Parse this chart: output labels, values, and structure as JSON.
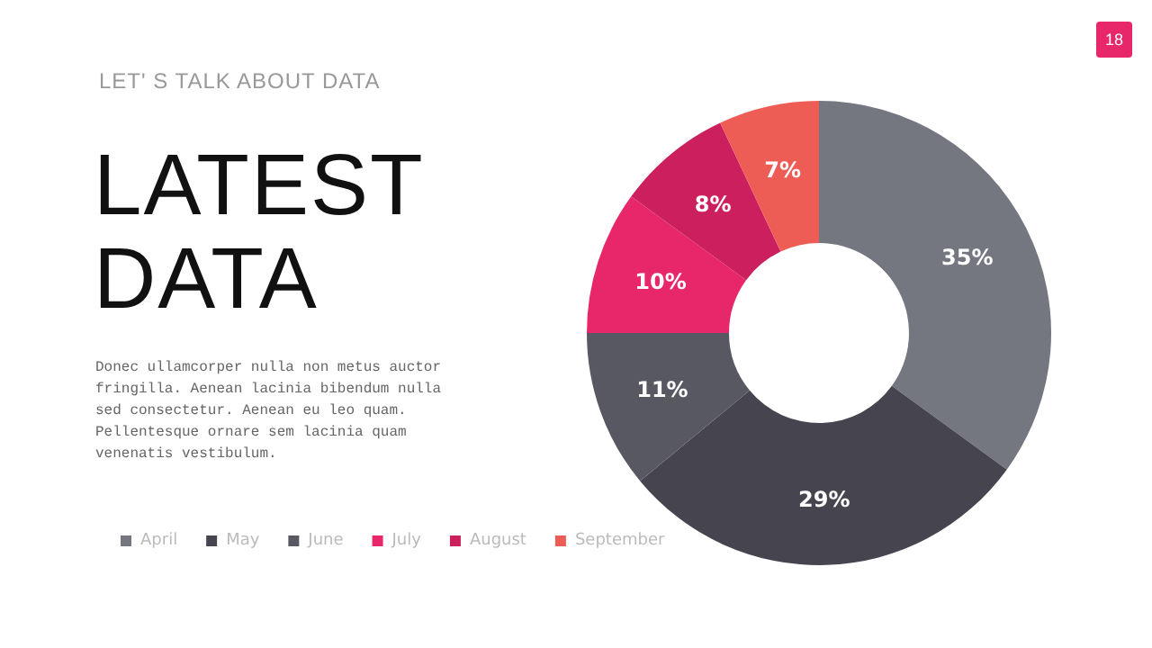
{
  "chart_data": {
    "type": "donut",
    "title": "LATEST DATA",
    "subtitle": "LET' S TALK ABOUT DATA",
    "categories": [
      "April",
      "May",
      "June",
      "July",
      "August",
      "September"
    ],
    "values": [
      35,
      29,
      11,
      10,
      8,
      7
    ],
    "value_labels": [
      "35%",
      "29%",
      "11%",
      "10%",
      "8%",
      "7%"
    ],
    "colors": [
      "#747680",
      "#46454f",
      "#585863",
      "#e8266a",
      "#cc1f5e",
      "#ee5d55"
    ],
    "legend": "bottom left",
    "annotations": [
      "Donec ullamcorper nulla non metus auctor fringilla. Aenean lacinia bibendum nulla sed consectetur. Aenean eu leo quam. Pellentesque ornare sem lacinia quam venenatis vestibulum.",
      "18"
    ]
  }
}
